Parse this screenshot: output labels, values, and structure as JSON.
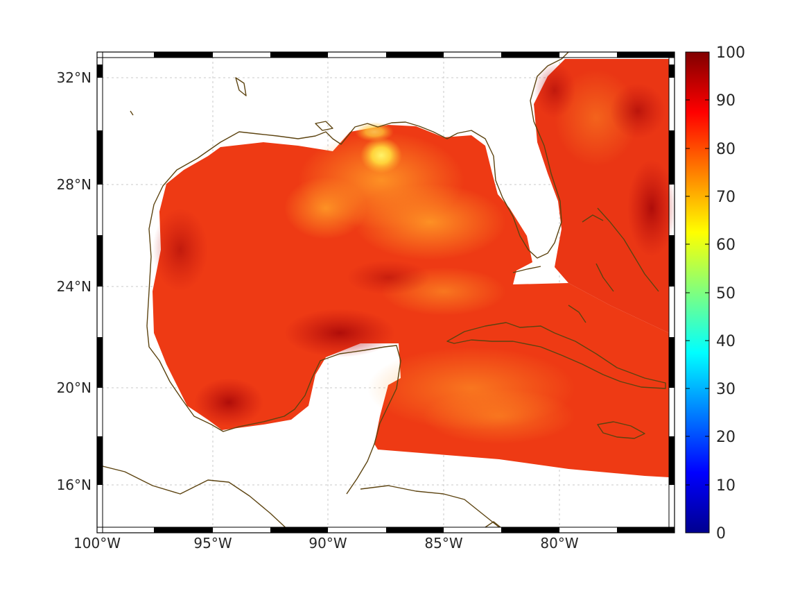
{
  "map": {
    "lon_range": [
      -100,
      -75
    ],
    "lat_range": [
      14,
      33
    ],
    "lon_ticks": [
      "100°W",
      "95°W",
      "90°W",
      "85°W",
      "80°W"
    ],
    "lat_ticks": [
      "32°N",
      "28°N",
      "24°N",
      "20°N",
      "16°N"
    ],
    "grid": true,
    "coastline_color": "#5c4310"
  },
  "colorbar": {
    "range": [
      0,
      100
    ],
    "tick_labels": [
      "100",
      "90",
      "80",
      "70",
      "60",
      "50",
      "40",
      "30",
      "20",
      "10",
      "0"
    ],
    "colormap": "jet"
  }
}
